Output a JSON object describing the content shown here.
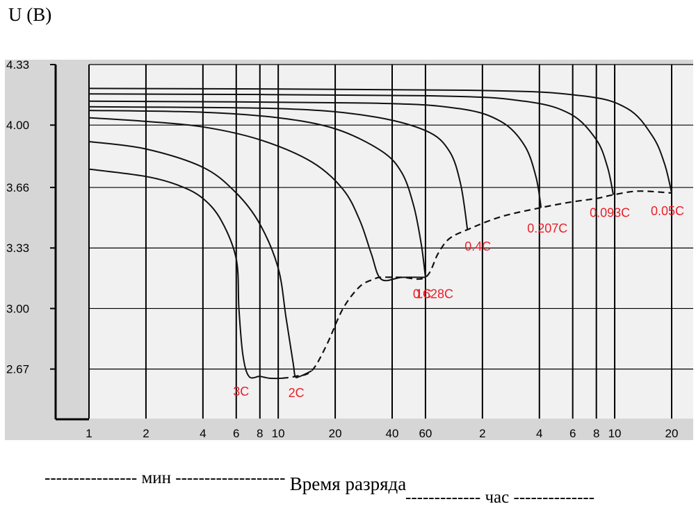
{
  "chart_data": {
    "type": "line",
    "ylabel": "U (В)",
    "xlabel": "Время разряда",
    "x_unit_min": "---------------- мин -------------------",
    "x_unit_hour": "------------- час --------------",
    "y_ticks": [
      "4.33",
      "4.00",
      "3.66",
      "3.33",
      "3.00",
      "2.67"
    ],
    "y_range": [
      2.4,
      4.33
    ],
    "x_scale": "log",
    "x_range_minutes": [
      1,
      1560
    ],
    "x_tick_labels": [
      "1",
      "2",
      "4",
      "6",
      "8",
      "10",
      "20",
      "40",
      "60",
      "2",
      "4",
      "6",
      "8",
      "10",
      "20"
    ],
    "x_tick_minutes": [
      1,
      2,
      4,
      6,
      8,
      10,
      20,
      40,
      60,
      120,
      240,
      360,
      480,
      600,
      1200
    ],
    "grid": true,
    "series": [
      {
        "name": "3C",
        "minutes": [
          1,
          2,
          3,
          4,
          5,
          6,
          6.2,
          6.5,
          7,
          8,
          9,
          10.5
        ],
        "values": [
          3.76,
          3.72,
          3.67,
          3.6,
          3.48,
          3.27,
          3.0,
          2.75,
          2.63,
          2.63,
          2.62,
          2.62
        ]
      },
      {
        "name": "2C",
        "minutes": [
          1,
          2,
          4,
          6,
          8,
          10,
          11,
          12,
          12.3,
          13,
          15
        ],
        "values": [
          3.91,
          3.87,
          3.77,
          3.63,
          3.46,
          3.22,
          2.95,
          2.7,
          2.63,
          2.63,
          2.66
        ]
      },
      {
        "name": "1C",
        "minutes": [
          1,
          2,
          4,
          8,
          15,
          22,
          27,
          31,
          35,
          45,
          60
        ],
        "values": [
          4.04,
          4.02,
          3.99,
          3.92,
          3.8,
          3.65,
          3.48,
          3.3,
          3.16,
          3.17,
          3.17
        ]
      },
      {
        "name": "0.628C",
        "minutes": [
          1,
          4,
          10,
          20,
          35,
          45,
          52,
          57,
          60
        ],
        "values": [
          4.08,
          4.07,
          4.04,
          3.98,
          3.86,
          3.74,
          3.56,
          3.35,
          3.17
        ]
      },
      {
        "name": "0.4C",
        "minutes": [
          1,
          10,
          30,
          60,
          80,
          92,
          100
        ],
        "values": [
          4.1,
          4.09,
          4.05,
          3.97,
          3.86,
          3.68,
          3.43
        ]
      },
      {
        "name": "0.207C",
        "minutes": [
          1,
          30,
          90,
          150,
          200,
          230,
          245
        ],
        "values": [
          4.13,
          4.12,
          4.09,
          4.02,
          3.89,
          3.72,
          3.55
        ]
      },
      {
        "name": "0.093C",
        "minutes": [
          1,
          60,
          200,
          350,
          480,
          550,
          590
        ],
        "values": [
          4.17,
          4.16,
          4.13,
          4.06,
          3.92,
          3.77,
          3.62
        ]
      },
      {
        "name": "0.05C",
        "minutes": [
          1,
          100,
          400,
          700,
          950,
          1100,
          1200
        ],
        "values": [
          4.2,
          4.19,
          4.16,
          4.09,
          3.94,
          3.79,
          3.63
        ]
      }
    ],
    "envelope": {
      "style": "dashed",
      "minutes": [
        10.5,
        12.3,
        15,
        18,
        22,
        27,
        32,
        35,
        45,
        60,
        70,
        80,
        100,
        150,
        245,
        350,
        480,
        590,
        800,
        1200
      ],
      "values": [
        2.62,
        2.63,
        2.66,
        2.8,
        3.0,
        3.12,
        3.16,
        3.17,
        3.17,
        3.17,
        3.3,
        3.38,
        3.43,
        3.5,
        3.55,
        3.58,
        3.6,
        3.62,
        3.64,
        3.63
      ]
    },
    "series_labels": [
      "3C",
      "2C",
      "1C",
      "0.628C",
      "0.4C",
      "0.207C",
      "0.093C",
      "0.05C"
    ],
    "colors": {
      "lines": "#111111",
      "labels": "#e8202a",
      "plot_bg": "#f1f1f1",
      "axis_bg": "#d6d6d6",
      "grid": "#000000"
    }
  }
}
